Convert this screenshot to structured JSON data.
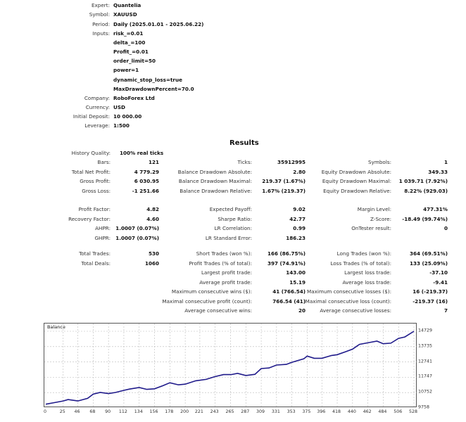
{
  "header": {
    "expert": {
      "label": "Expert:",
      "value": "Quantelia"
    },
    "symbol": {
      "label": "Symbol:",
      "value": "XAUUSD"
    },
    "period": {
      "label": "Period:",
      "value": "Daily (2025.01.01 - 2025.06.22)"
    },
    "inputs": {
      "label": "Inputs:",
      "values": [
        "risk_=0.01",
        "delta_=100",
        "Profit_=0.01",
        "order_limit=50",
        "power=1",
        "dynamic_stop_loss=true",
        "MaxDrawdownPercent=70.0"
      ]
    },
    "company": {
      "label": "Company:",
      "value": "RoboForex Ltd"
    },
    "currency": {
      "label": "Currency:",
      "value": "USD"
    },
    "initial_deposit": {
      "label": "Initial Deposit:",
      "value": "10 000.00"
    },
    "leverage": {
      "label": "Leverage:",
      "value": "1:500"
    }
  },
  "results": {
    "title": "Results",
    "history_quality": {
      "label": "History Quality:",
      "value": "100% real ticks"
    },
    "col1": [
      {
        "label": "Bars:",
        "value": "121"
      },
      {
        "label": "Total Net Profit:",
        "value": "4 779.29"
      },
      {
        "label": "Gross Profit:",
        "value": "6 030.95"
      },
      {
        "label": "Gross Loss:",
        "value": "-1 251.66"
      },
      {
        "label": "Profit Factor:",
        "value": "4.82"
      },
      {
        "label": "Recovery Factor:",
        "value": "4.60"
      },
      {
        "label": "AHPR:",
        "value": "1.0007 (0.07%)"
      },
      {
        "label": "GHPR:",
        "value": "1.0007 (0.07%)"
      },
      {
        "label": "Total Trades:",
        "value": "530"
      },
      {
        "label": "Total Deals:",
        "value": "1060"
      }
    ],
    "col2": [
      {
        "label": "Ticks:",
        "value": "35912995"
      },
      {
        "label": "Balance Drawdown Absolute:",
        "value": "2.80"
      },
      {
        "label": "Balance Drawdown Maximal:",
        "value": "219.37 (1.67%)"
      },
      {
        "label": "Balance Drawdown Relative:",
        "value": "1.67% (219.37)"
      },
      {
        "label": "Expected Payoff:",
        "value": "9.02"
      },
      {
        "label": "Sharpe Ratio:",
        "value": "42.77"
      },
      {
        "label": "LR Correlation:",
        "value": "0.99"
      },
      {
        "label": "LR Standard Error:",
        "value": "186.23"
      },
      {
        "label": "Short Trades (won %):",
        "value": "166 (86.75%)"
      },
      {
        "label": "Profit Trades (% of total):",
        "value": "397 (74.91%)"
      },
      {
        "label": "Largest profit trade:",
        "value": "143.00"
      },
      {
        "label": "Average profit trade:",
        "value": "15.19"
      },
      {
        "label": "Maximum consecutive wins ($):",
        "value": "41 (766.54)"
      },
      {
        "label": "Maximal consecutive profit (count):",
        "value": "766.54 (41)"
      },
      {
        "label": "Average consecutive wins:",
        "value": "20"
      }
    ],
    "col3": [
      {
        "label": "Symbols:",
        "value": "1"
      },
      {
        "label": "Equity Drawdown Absolute:",
        "value": "349.33"
      },
      {
        "label": "Equity Drawdown Maximal:",
        "value": "1 039.71 (7.92%)"
      },
      {
        "label": "Equity Drawdown Relative:",
        "value": "8.22% (929.03)"
      },
      {
        "label": "Margin Level:",
        "value": "477.31%"
      },
      {
        "label": "Z-Score:",
        "value": "-18.49 (99.74%)"
      },
      {
        "label": "OnTester result:",
        "value": "0"
      },
      {
        "label": "Long Trades (won %):",
        "value": "364 (69.51%)"
      },
      {
        "label": "Loss Trades (% of total):",
        "value": "133 (25.09%)"
      },
      {
        "label": "Largest loss trade:",
        "value": "-37.10"
      },
      {
        "label": "Average loss trade:",
        "value": "-9.41"
      },
      {
        "label": "Maximum consecutive losses ($):",
        "value": "16 (-219.37)"
      },
      {
        "label": "Maximal consecutive loss (count):",
        "value": "-219.37 (16)"
      },
      {
        "label": "Average consecutive losses:",
        "value": "7"
      }
    ]
  },
  "chart_data": {
    "type": "line",
    "title": "Balance",
    "xlabel": "",
    "ylabel": "",
    "x_ticks": [
      "0",
      "25",
      "46",
      "68",
      "90",
      "112",
      "134",
      "156",
      "178",
      "200",
      "221",
      "243",
      "265",
      "287",
      "309",
      "331",
      "353",
      "375",
      "396",
      "418",
      "440",
      "462",
      "484",
      "506",
      "528"
    ],
    "y_ticks": [
      "9758",
      "10752",
      "11747",
      "12741",
      "13735",
      "14729"
    ],
    "xlim": [
      0,
      530
    ],
    "ylim": [
      9758,
      14729
    ],
    "grid": true,
    "series": [
      {
        "name": "Balance",
        "color": "#1f1a8a",
        "x": [
          0,
          10,
          25,
          32,
          46,
          60,
          68,
          78,
          90,
          100,
          112,
          120,
          134,
          145,
          156,
          168,
          178,
          190,
          200,
          215,
          230,
          243,
          255,
          266,
          275,
          287,
          300,
          309,
          320,
          331,
          345,
          353,
          370,
          375,
          385,
          396,
          410,
          418,
          430,
          440,
          450,
          462,
          475,
          484,
          495,
          506,
          515,
          528
        ],
        "values": [
          10000,
          10080,
          10210,
          10300,
          10210,
          10380,
          10650,
          10760,
          10690,
          10760,
          10900,
          10980,
          11080,
          10960,
          11000,
          11200,
          11390,
          11260,
          11300,
          11520,
          11610,
          11790,
          11920,
          11920,
          12000,
          11860,
          11940,
          12310,
          12350,
          12540,
          12580,
          12720,
          12940,
          13120,
          12980,
          12980,
          13160,
          13210,
          13400,
          13570,
          13880,
          13980,
          14090,
          13920,
          13960,
          14270,
          14360,
          14729
        ]
      }
    ]
  }
}
